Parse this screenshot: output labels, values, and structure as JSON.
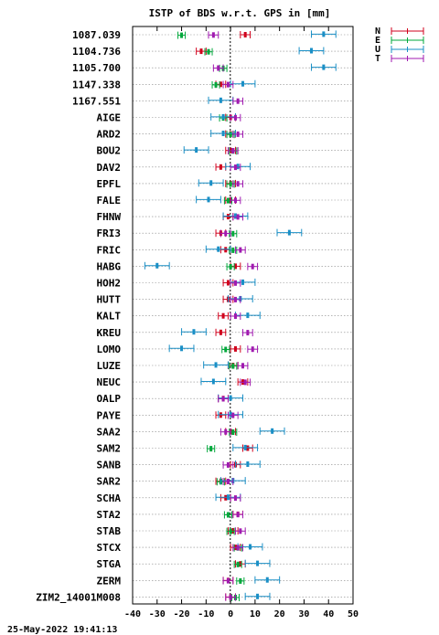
{
  "chart_data": {
    "type": "scatter",
    "title": "ISTP of BDS w.r.t. GPS in [mm]",
    "footer": "25-May-2022 19:41:13",
    "xlim": [
      -40,
      50
    ],
    "x_ticks": [
      -40,
      -30,
      -20,
      -10,
      0,
      10,
      20,
      30,
      40,
      50
    ],
    "grid": "horizontal dotted",
    "legend_position": "top-right outside",
    "stations": [
      "1087.039",
      "1104.736",
      "1105.700",
      "1147.338",
      "1167.551",
      "AIGE",
      "ARD2",
      "BOU2",
      "DAV2",
      "EPFL",
      "FALE",
      "FHNW",
      "FRI3",
      "FRIC",
      "HABG",
      "HOH2",
      "HUTT",
      "KALT",
      "KREU",
      "LOMO",
      "LUZE",
      "NEUC",
      "OALP",
      "PAYE",
      "SAA2",
      "SAM2",
      "SANB",
      "SAR2",
      "SCHA",
      "STA2",
      "STAB",
      "STCX",
      "STGA",
      "ZERM",
      "ZIM2_14001M008"
    ],
    "series": [
      {
        "name": "N",
        "color": "#d0001c",
        "values": [
          6,
          -12,
          null,
          -4,
          null,
          0,
          0,
          0,
          -4,
          0,
          0,
          -1,
          -4,
          -2,
          2,
          -1,
          -1,
          -3,
          -4,
          2,
          1,
          5,
          -3,
          -4,
          0,
          7,
          2,
          -4,
          -2,
          3,
          1,
          2,
          4,
          -1,
          0
        ]
      },
      {
        "name": "E",
        "color": "#00a83b",
        "values": [
          -20,
          -9,
          -3,
          -6,
          null,
          -3,
          0,
          1,
          null,
          0,
          -1,
          null,
          1,
          1,
          0,
          null,
          null,
          null,
          null,
          -2,
          1,
          null,
          null,
          null,
          1,
          -8,
          null,
          -4,
          null,
          -1,
          0,
          3,
          3,
          4,
          2
        ]
      },
      {
        "name": "U",
        "color": "#1a8fc6",
        "values": [
          38,
          33,
          38,
          5,
          -4,
          -3,
          -3,
          -14,
          3,
          -8,
          -9,
          2,
          24,
          -5,
          -30,
          5,
          4,
          7,
          -15,
          -20,
          -6,
          -7,
          0,
          0,
          17,
          6,
          7,
          1,
          -1,
          null,
          null,
          8,
          11,
          15,
          11
        ]
      },
      {
        "name": "T",
        "color": "#a01ab0",
        "values": [
          -7,
          null,
          -5,
          -1,
          3,
          2,
          3,
          1,
          2,
          3,
          2,
          3,
          -2,
          4,
          9,
          2,
          2,
          2,
          7,
          9,
          5,
          6,
          -3,
          1,
          -2,
          null,
          -1,
          -1,
          2,
          3,
          4,
          3,
          null,
          -1,
          0
        ]
      }
    ],
    "error_halfwidth": {
      "N": 2,
      "E": 1.5,
      "U": 5,
      "T": 2
    }
  }
}
